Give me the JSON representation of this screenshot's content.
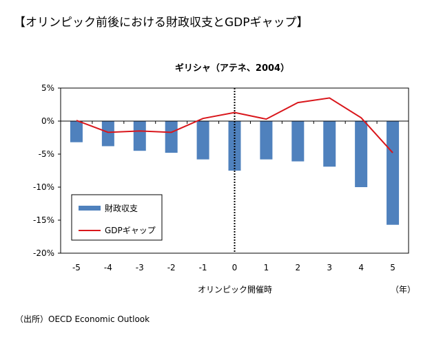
{
  "page": {
    "title": "【オリンピック前後における財政収支とGDPギャップ】",
    "source": "（出所）OECD Economic Outlook"
  },
  "colors": {
    "bar": "#4f81bd",
    "line": "#d9161b",
    "axis": "#000000",
    "grid": "#cfcfcf"
  },
  "chart_data": {
    "type": "bar",
    "title": "ギリシャ（アテネ、2004）",
    "xlabel": "オリンピック開催時",
    "xunit": "（年）",
    "ylabel": "",
    "categories": [
      "-5",
      "-4",
      "-3",
      "-2",
      "-1",
      "0",
      "1",
      "2",
      "3",
      "4",
      "5"
    ],
    "ylim": [
      -20,
      5
    ],
    "yticks": [
      5,
      0,
      -5,
      -10,
      -15,
      -20
    ],
    "ytick_labels": [
      "5%",
      "0%",
      "-5%",
      "-10%",
      "-15%",
      "-20%"
    ],
    "grid": false,
    "event_marker": {
      "category": "0",
      "style": "dotted"
    },
    "legend_position": "bottom-left",
    "series": [
      {
        "name": "財政収支",
        "type": "bar",
        "values": [
          -3.2,
          -3.8,
          -4.5,
          -4.8,
          -5.8,
          -7.5,
          -5.8,
          -6.1,
          -6.9,
          -10.0,
          -15.7
        ]
      },
      {
        "name": "GDPギャップ",
        "type": "line",
        "values": [
          0.1,
          -1.7,
          -1.5,
          -1.7,
          0.4,
          1.3,
          0.3,
          2.8,
          3.5,
          0.5,
          -4.8
        ]
      }
    ]
  }
}
